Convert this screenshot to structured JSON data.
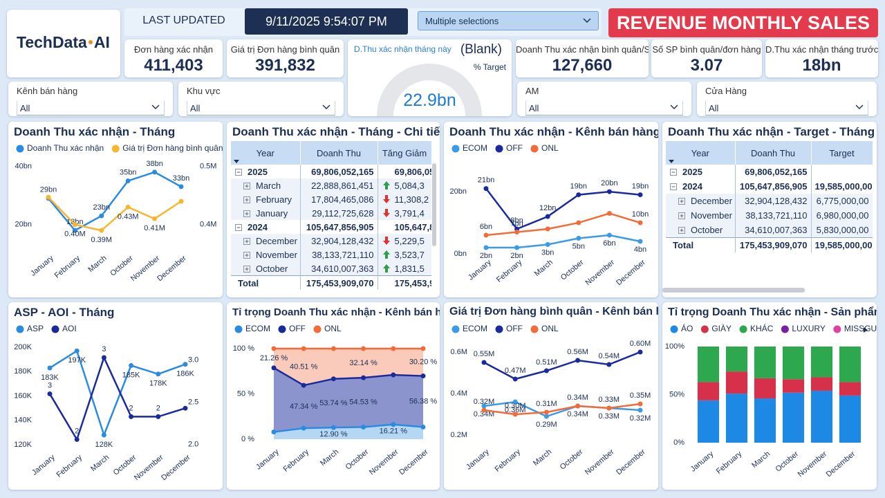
{
  "header": {
    "logo_left": "TechData",
    "logo_right": "AI",
    "last_updated_label": "LAST UPDATED",
    "last_updated": "9/11/2025 9:54:07 PM",
    "selection": "Multiple selections",
    "banner": "REVENUE MONTHLY SALES"
  },
  "kpis": [
    {
      "label": "Đơn hàng xác nhận",
      "value": "411,403"
    },
    {
      "label": "Giá trị Đơn hàng bình quân",
      "value": "391,832"
    },
    {
      "label": "Doanh Thu xác nhận bình quân/SP",
      "value": "127,660"
    },
    {
      "label": "Số SP bình quân/đơn hàng",
      "value": "3.07"
    },
    {
      "label": "D.Thu xác nhận tháng trước",
      "value": "18bn"
    }
  ],
  "gauge": {
    "label": "D.Thu xác nhận tháng này",
    "status": "(Blank)",
    "target_label": "% Target",
    "value": "22.9bn"
  },
  "filters": [
    {
      "label": "Kênh bán hàng",
      "value": "All"
    },
    {
      "label": "Khu vực",
      "value": "All"
    },
    {
      "label": "AM",
      "value": "All"
    },
    {
      "label": "Cửa Hàng",
      "value": "All"
    }
  ],
  "tables": [
    {
      "title": "Doanh Thu xác nhận - Tháng - Chi tiết",
      "columns": [
        "Year",
        "Doanh Thu",
        "Tăng Giảm"
      ],
      "groups": [
        {
          "label": "2025",
          "cells": [
            "69,806,052,165",
            "69,806,05"
          ],
          "rows": [
            {
              "label": "March",
              "cells": [
                "22,888,861,451",
                "5,084,3"
              ],
              "trend": "up"
            },
            {
              "label": "February",
              "cells": [
                "17,804,465,086",
                "11,308,2"
              ],
              "trend": "down"
            },
            {
              "label": "January",
              "cells": [
                "29,112,725,628",
                "3,791,4"
              ],
              "trend": "down"
            }
          ]
        },
        {
          "label": "2024",
          "cells": [
            "105,647,856,905",
            "105,647,85"
          ],
          "rows": [
            {
              "label": "December",
              "cells": [
                "32,904,128,432",
                "5,229,5"
              ],
              "trend": "down"
            },
            {
              "label": "November",
              "cells": [
                "38,133,721,110",
                "3,523,7"
              ],
              "trend": "up"
            },
            {
              "label": "October",
              "cells": [
                "34,610,007,363",
                "1,831,5"
              ],
              "trend": "up"
            }
          ]
        }
      ],
      "total": {
        "label": "Total",
        "cells": [
          "175,453,909,070",
          "175,453,9"
        ]
      }
    },
    {
      "title": "Doanh Thu xác nhận - Target - Tháng",
      "columns": [
        "Year",
        "Doanh Thu",
        "Target"
      ],
      "groups": [
        {
          "label": "2025",
          "cells": [
            "69,806,052,165",
            null
          ],
          "rows": []
        },
        {
          "label": "2024",
          "cells": [
            "105,647,856,905",
            "19,585,000,00"
          ],
          "rows": [
            {
              "label": "December",
              "cells": [
                "32,904,128,432",
                "6,775,000,00"
              ]
            },
            {
              "label": "November",
              "cells": [
                "38,133,721,110",
                "6,980,000,00"
              ]
            },
            {
              "label": "October",
              "cells": [
                "34,610,007,363",
                "5,830,000,00"
              ]
            }
          ]
        }
      ],
      "total": {
        "label": "Total",
        "cells": [
          "175,453,909,070",
          "19,585,000,00"
        ]
      }
    }
  ],
  "chart_data": [
    {
      "type": "line",
      "title": "Doanh Thu xác nhận - Tháng",
      "legend": "top-left",
      "categories": [
        "January",
        "February",
        "March",
        "October",
        "November",
        "December"
      ],
      "series": [
        {
          "name": "Doanh Thu xác nhận",
          "color": "#2b8be0",
          "values": [
            29000000000,
            18000000000,
            23000000000,
            35000000000,
            38000000000,
            33000000000
          ],
          "value_labels": [
            "29bn",
            "18bn",
            "23bn",
            "35bn",
            "38bn",
            "33bn"
          ]
        },
        {
          "name": "Giá trị Đơn hàng bình quân",
          "color": "#f5b731",
          "axis": "y2",
          "values": [
            447000,
            400000,
            390000,
            430000,
            410000,
            440000
          ],
          "value_labels": [
            null,
            "0.40M",
            "0.39M",
            "0.43M",
            "0.41M",
            null
          ]
        }
      ],
      "ylim": [
        14000000000,
        42000000000
      ],
      "yticks": [
        {
          "value": 20000000000,
          "label": "20bn"
        },
        {
          "value": 40000000000,
          "label": "40bn"
        }
      ],
      "y2lim": [
        370000,
        510000
      ],
      "y2ticks": [
        {
          "value": 400000,
          "label": "0.4M"
        },
        {
          "value": 500000,
          "label": "0.5M"
        }
      ]
    },
    {
      "type": "line",
      "title": "ASP - AOI - Tháng",
      "legend": "top-left",
      "categories": [
        "January",
        "February",
        "March",
        "October",
        "November",
        "December"
      ],
      "series": [
        {
          "name": "ASP",
          "color": "#2b8be0",
          "values": [
            183000,
            197000,
            128000,
            185000,
            178000,
            186000
          ],
          "value_labels": [
            "183K",
            "197K",
            "128K",
            "185K",
            "178K",
            "186K"
          ]
        },
        {
          "name": "AOI",
          "color": "#1a2a9c",
          "axis": "y2",
          "values": [
            2.6,
            2.06,
            3.03,
            2.33,
            2.33,
            2.43
          ],
          "value_labels": [
            "3",
            "2",
            "3",
            "2",
            "2",
            null
          ]
        }
      ],
      "ylim": [
        116000,
        204000
      ],
      "yticks": [
        {
          "value": 120000,
          "label": "120K"
        },
        {
          "value": 140000,
          "label": "140K"
        },
        {
          "value": 160000,
          "label": "160K"
        },
        {
          "value": 180000,
          "label": "180K"
        },
        {
          "value": 200000,
          "label": "200K"
        }
      ],
      "y2lim": [
        1.94,
        3.21
      ],
      "y2ticks": [
        {
          "value": 2,
          "label": "2.0"
        },
        2.5,
        {
          "value": 3,
          "label": "3.0"
        }
      ]
    },
    {
      "type": "line",
      "title": "Doanh Thu xác nhận - Kênh bán hàng",
      "legend": "top-left",
      "categories": [
        "January",
        "February",
        "March",
        "October",
        "November",
        "December"
      ],
      "series": [
        {
          "name": "ECOM",
          "color": "#3a9be8",
          "values": [
            2000000000,
            2000000000,
            3000000000,
            5000000000,
            6000000000,
            4000000000
          ],
          "value_labels": [
            "2bn",
            "2bn",
            "3bn",
            "5bn",
            "6bn",
            "4bn"
          ]
        },
        {
          "name": "OFF",
          "color": "#1a2a9c",
          "values": [
            21000000000,
            8000000000,
            12000000000,
            19000000000,
            20000000000,
            19000000000
          ],
          "value_labels": [
            "21bn",
            "8bn",
            "12bn",
            "19bn",
            "20bn",
            "19bn"
          ]
        },
        {
          "name": "ONL",
          "color": "#f26b38",
          "values": [
            6000000000,
            7000000000,
            8000000000,
            10000000000,
            13000000000,
            10000000000
          ],
          "value_labels": [
            "6bn",
            "7bn",
            null,
            null,
            null,
            "10bn"
          ]
        }
      ],
      "ylim": [
        0,
        23800000000
      ],
      "yticks": [
        {
          "value": 0,
          "label": "0bn"
        },
        {
          "value": 20000000000,
          "label": "20bn"
        }
      ]
    },
    {
      "type": "area",
      "stacked": true,
      "title": "Tỉ trọng Doanh Thu xác nhận - Kênh bán hàng",
      "legend": "top-left",
      "categories": [
        "January",
        "February",
        "March",
        "October",
        "November",
        "December"
      ],
      "series": [
        {
          "name": "ECOM",
          "color": "#2b8be0",
          "values": [
            8,
            12.15,
            12.9,
            13.33,
            16.21,
            13.42
          ],
          "value_labels": [
            null,
            null,
            "12.90 %",
            null,
            "16.21 %",
            null
          ]
        },
        {
          "name": "OFF",
          "color": "#1a2a9c",
          "values": [
            70.74,
            47.34,
            53.74,
            54.53,
            54.79,
            56.38
          ],
          "value_labels": [
            null,
            "47.34 %",
            "53.74 %",
            "54.53 %",
            null,
            "56.38 %"
          ]
        },
        {
          "name": "ONL",
          "color": "#f26b38",
          "values": [
            21.26,
            40.51,
            33.36,
            32.14,
            29,
            30.2
          ],
          "value_labels": [
            "21.26 %",
            "40.51 %",
            null,
            "32.14 %",
            null,
            "30.20 %"
          ]
        }
      ],
      "ylim": [
        0,
        100
      ],
      "yticks": [
        {
          "value": 0,
          "label": "0 %"
        },
        {
          "value": 50,
          "label": "50 %"
        },
        {
          "value": 100,
          "label": "100 %"
        }
      ]
    },
    {
      "type": "line",
      "title": "Giá trị Đơn hàng bình quân - Kênh bán hàng",
      "legend": "top-left",
      "categories": [
        "January",
        "February",
        "March",
        "October",
        "November",
        "December"
      ],
      "series": [
        {
          "name": "ECOM",
          "color": "#3a9be8",
          "values": [
            340000,
            360000,
            290000,
            340000,
            330000,
            320000
          ],
          "value_labels": [
            "0.34M",
            "0.36M",
            "0.29M",
            "0.34M",
            "0.33M",
            "0.32M"
          ]
        },
        {
          "name": "OFF",
          "color": "#1a2a9c",
          "values": [
            550000,
            470000,
            510000,
            560000,
            540000,
            600000
          ],
          "value_labels": [
            "0.55M",
            "0.47M",
            "0.51M",
            "0.56M",
            "0.54M",
            "0.60M"
          ]
        },
        {
          "name": "ONL",
          "color": "#f26b38",
          "values": [
            320000,
            300000,
            310000,
            340000,
            330000,
            350000
          ],
          "value_labels": [
            "0.32M",
            "0.30M",
            "0.31M",
            "0.34M",
            "0.33M",
            "0.35M"
          ]
        }
      ],
      "ylim": [
        190000,
        630000
      ],
      "yticks": [
        {
          "value": 200000,
          "label": "0.2M"
        },
        {
          "value": 400000,
          "label": "0.4M"
        },
        {
          "value": 600000,
          "label": "0.6M"
        }
      ]
    },
    {
      "type": "bar",
      "stacked": true,
      "title": "Tỉ trọng Doanh Thu xác nhận - Sản phẩm",
      "legend": "top-left",
      "categories": [
        "January",
        "February",
        "March",
        "October",
        "November",
        "December"
      ],
      "series": [
        {
          "name": "ÁO",
          "color": "#1e88e5",
          "values": [
            44,
            51,
            46,
            52,
            54,
            49
          ]
        },
        {
          "name": "GIÀY",
          "color": "#d6304a",
          "values": [
            19,
            23,
            21,
            14,
            14,
            14
          ]
        },
        {
          "name": "KHÁC",
          "color": "#2ea84e",
          "values": [
            37,
            26,
            33,
            34,
            32,
            37
          ]
        },
        {
          "name": "LUXURY",
          "color": "#7b1fa2",
          "values": [
            0,
            0,
            0,
            0,
            0,
            0
          ]
        },
        {
          "name": "MISSGU",
          "color": "#e040a0",
          "values": [
            0,
            0,
            0,
            0,
            0,
            0
          ]
        }
      ],
      "ylim": [
        0,
        100
      ],
      "yticks": [
        {
          "value": 0,
          "label": "0%"
        },
        {
          "value": 50,
          "label": "50%"
        },
        {
          "value": 100,
          "label": "100%"
        }
      ]
    }
  ]
}
